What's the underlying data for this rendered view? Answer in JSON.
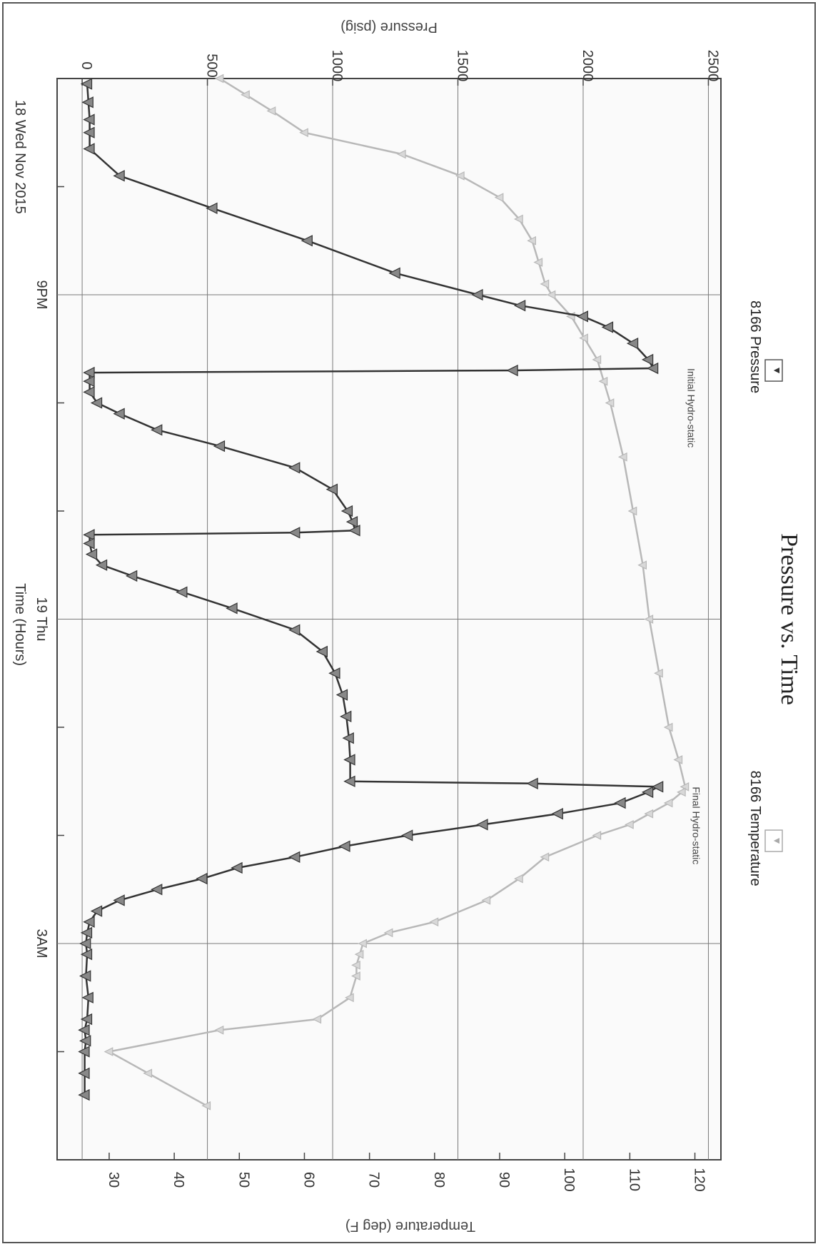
{
  "chart_data": {
    "type": "line",
    "title": "Pressure vs. Time",
    "xlabel": "Time (Hours)",
    "ylabel_left": "Pressure (psig)",
    "ylabel_right": "Temperature (deg F)",
    "date_label": "18 Wed Nov 2015",
    "x_range_hours": [
      0,
      10
    ],
    "x_ticks": [
      {
        "hour": 2,
        "label": "9PM"
      },
      {
        "hour": 5,
        "label": "19 Thu"
      },
      {
        "hour": 8,
        "label": "3AM"
      }
    ],
    "x_minor_ticks": [
      1,
      3,
      4,
      6,
      7,
      9
    ],
    "y_left": {
      "min": -100,
      "max": 2550,
      "ticks": [
        0,
        500,
        1000,
        1500,
        2000,
        2500
      ]
    },
    "y_right": {
      "min": 22,
      "max": 124,
      "ticks": [
        30,
        40,
        50,
        60,
        70,
        80,
        90,
        100,
        110,
        120
      ]
    },
    "grid": true,
    "legend": {
      "pressure_label": "8166 Pressure",
      "temperature_label": "8166 Temperature",
      "pressure_marker": "▼",
      "temperature_marker": "▼"
    },
    "annotations": [
      {
        "text": "Initial Hydro-static",
        "hour": 2.68,
        "value": 2360
      },
      {
        "text": "Final Hydro-static",
        "hour": 6.55,
        "value": 2380
      }
    ],
    "colors": {
      "pressure": "#333333",
      "temperature": "#b8b8b8",
      "grid": "#7a7a7a"
    },
    "series": [
      {
        "name": "8166 Pressure",
        "axis": "left",
        "x": [
          0.05,
          0.22,
          0.38,
          0.5,
          0.65,
          0.9,
          1.2,
          1.5,
          1.8,
          2.0,
          2.1,
          2.2,
          2.3,
          2.45,
          2.6,
          2.68,
          2.7,
          2.72,
          2.8,
          2.9,
          3.0,
          3.1,
          3.25,
          3.4,
          3.6,
          3.8,
          4.0,
          4.1,
          4.18,
          4.2,
          4.22,
          4.3,
          4.4,
          4.5,
          4.6,
          4.75,
          4.9,
          5.1,
          5.3,
          5.5,
          5.7,
          5.9,
          6.1,
          6.3,
          6.5,
          6.52,
          6.55,
          6.6,
          6.7,
          6.8,
          6.9,
          7.0,
          7.1,
          7.2,
          7.3,
          7.4,
          7.5,
          7.6,
          7.7,
          7.8,
          7.9,
          8.0,
          8.1,
          8.3,
          8.5,
          8.7,
          8.8,
          8.9,
          9.0,
          9.2,
          9.4
        ],
        "values": [
          20,
          25,
          30,
          30,
          30,
          150,
          520,
          900,
          1250,
          1580,
          1750,
          2000,
          2100,
          2200,
          2260,
          2280,
          1720,
          30,
          30,
          30,
          60,
          150,
          300,
          550,
          850,
          1000,
          1060,
          1080,
          1090,
          850,
          30,
          30,
          40,
          80,
          200,
          400,
          600,
          850,
          960,
          1010,
          1040,
          1055,
          1065,
          1070,
          1070,
          1800,
          2300,
          2260,
          2150,
          1900,
          1600,
          1300,
          1050,
          850,
          620,
          480,
          300,
          150,
          60,
          30,
          20,
          15,
          20,
          15,
          25,
          20,
          10,
          15,
          10,
          10,
          10
        ]
      },
      {
        "name": "8166 Temperature",
        "axis": "right",
        "x": [
          0.0,
          0.15,
          0.3,
          0.5,
          0.7,
          0.9,
          1.1,
          1.3,
          1.5,
          1.7,
          1.9,
          2.0,
          2.2,
          2.4,
          2.6,
          2.8,
          3.0,
          3.5,
          4.0,
          4.5,
          5.0,
          5.5,
          6.0,
          6.3,
          6.55,
          6.6,
          6.7,
          6.8,
          6.9,
          7.0,
          7.2,
          7.4,
          7.6,
          7.8,
          7.9,
          8.0,
          8.1,
          8.2,
          8.3,
          8.5,
          8.7,
          8.8,
          9.0,
          9.2,
          9.5
        ],
        "values": [
          47,
          51,
          55,
          60,
          75,
          84,
          90,
          93,
          95,
          96,
          97,
          98,
          101,
          103,
          105,
          106,
          107,
          109,
          110.5,
          112,
          113,
          114.5,
          116,
          117.5,
          118.5,
          118,
          116,
          113,
          110,
          105,
          97,
          93,
          88,
          80,
          73,
          69,
          68.5,
          68,
          68,
          67,
          62,
          47,
          30,
          36,
          45
        ]
      }
    ]
  }
}
